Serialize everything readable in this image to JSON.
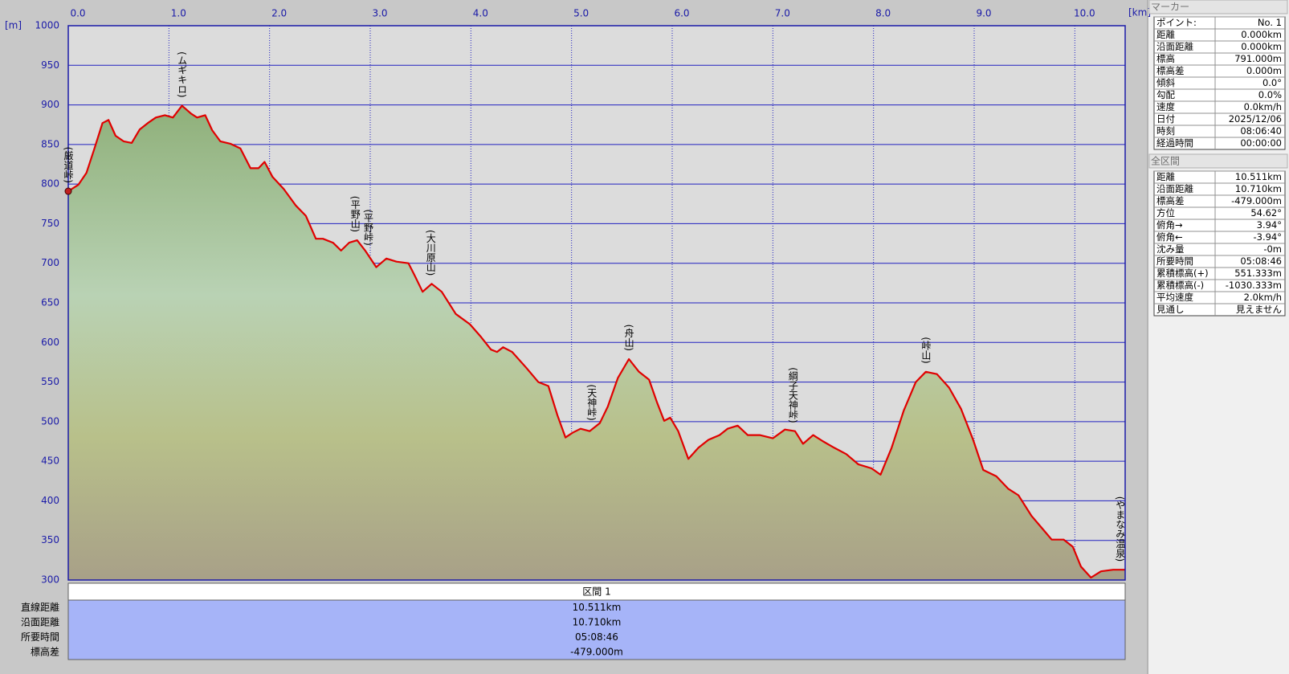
{
  "chart_data": {
    "type": "area",
    "y_label": "[m]",
    "x_label": "[km]",
    "xlim": [
      0,
      10.5
    ],
    "ylim": [
      300,
      1000
    ],
    "xticks": [
      {
        "value": 0,
        "label": "0.0"
      },
      {
        "value": 1,
        "label": "1.0"
      },
      {
        "value": 2,
        "label": "2.0"
      },
      {
        "value": 3,
        "label": "3.0"
      },
      {
        "value": 4,
        "label": "4.0"
      },
      {
        "value": 5,
        "label": "5.0"
      },
      {
        "value": 6,
        "label": "6.0"
      },
      {
        "value": 7,
        "label": "7.0"
      },
      {
        "value": 8,
        "label": "8.0"
      },
      {
        "value": 9,
        "label": "9.0"
      },
      {
        "value": 10,
        "label": "10.0"
      }
    ],
    "yticks": [
      300,
      350,
      400,
      450,
      500,
      550,
      600,
      650,
      700,
      750,
      800,
      850,
      900,
      950,
      1000
    ],
    "grid": true,
    "x": [
      0,
      0.1,
      0.18,
      0.26,
      0.34,
      0.4,
      0.47,
      0.55,
      0.63,
      0.71,
      0.79,
      0.87,
      0.96,
      1.04,
      1.13,
      1.22,
      1.28,
      1.36,
      1.43,
      1.51,
      1.61,
      1.71,
      1.81,
      1.89,
      1.95,
      2.03,
      2.14,
      2.26,
      2.36,
      2.46,
      2.53,
      2.63,
      2.71,
      2.79,
      2.87,
      2.95,
      3.06,
      3.16,
      3.26,
      3.38,
      3.44,
      3.52,
      3.61,
      3.71,
      3.85,
      3.99,
      4.1,
      4.2,
      4.26,
      4.32,
      4.41,
      4.55,
      4.67,
      4.77,
      4.86,
      4.94,
      5.01,
      5.09,
      5.18,
      5.28,
      5.36,
      5.46,
      5.57,
      5.67,
      5.77,
      5.85,
      5.92,
      5.98,
      6.06,
      6.16,
      6.26,
      6.36,
      6.47,
      6.55,
      6.65,
      6.75,
      6.87,
      7.0,
      7.12,
      7.22,
      7.3,
      7.4,
      7.5,
      7.61,
      7.73,
      7.85,
      7.98,
      8.07,
      8.18,
      8.3,
      8.42,
      8.52,
      8.63,
      8.75,
      8.87,
      8.99,
      9.09,
      9.22,
      9.34,
      9.44,
      9.57,
      9.69,
      9.77,
      9.89,
      9.98,
      10.06,
      10.16,
      10.26,
      10.38,
      10.5
    ],
    "series": [
      {
        "color": "#e00000",
        "values": [
          791,
          799,
          814,
          845,
          877,
          881,
          861,
          854,
          852,
          869,
          877,
          884,
          887,
          884,
          899,
          889,
          884,
          887,
          868,
          854,
          851,
          845,
          820,
          820,
          828,
          809,
          794,
          773,
          760,
          731,
          731,
          726,
          716,
          726,
          729,
          716,
          695,
          706,
          702,
          700,
          685,
          664,
          674,
          664,
          636,
          623,
          607,
          591,
          588,
          594,
          588,
          568,
          550,
          545,
          508,
          480,
          486,
          491,
          488,
          498,
          519,
          555,
          579,
          563,
          553,
          524,
          501,
          505,
          488,
          453,
          467,
          477,
          483,
          491,
          495,
          483,
          483,
          479,
          490,
          488,
          472,
          483,
          475,
          467,
          459,
          446,
          441,
          433,
          467,
          514,
          550,
          563,
          560,
          543,
          516,
          477,
          439,
          431,
          415,
          407,
          381,
          363,
          351,
          351,
          342,
          317,
          303,
          311,
          313,
          313
        ]
      }
    ],
    "annotations": [
      {
        "text": "(厳道峠)",
        "x": 0,
        "y": 791
      },
      {
        "text": "(ムギキロ)",
        "x": 1.13,
        "y": 899
      },
      {
        "text": "(平野山)",
        "x": 2.85,
        "y": 729
      },
      {
        "text": "(平野峠)",
        "x": 2.98,
        "y": 712
      },
      {
        "text": "(大川原山)",
        "x": 3.6,
        "y": 674
      },
      {
        "text": "(天神峠)",
        "x": 5.2,
        "y": 491
      },
      {
        "text": "(舟山)",
        "x": 5.57,
        "y": 579
      },
      {
        "text": "(綱子天神峠)",
        "x": 7.2,
        "y": 488
      },
      {
        "text": "(峠山)",
        "x": 8.52,
        "y": 563
      },
      {
        "text": "(やまなみ温泉)",
        "x": 10.45,
        "y": 313
      }
    ]
  },
  "section_table": {
    "header": "区間 1",
    "rows": [
      [
        "直線距離",
        "10.511km"
      ],
      [
        "沿面距離",
        "10.710km"
      ],
      [
        "所要時間",
        "05:08:46"
      ],
      [
        "標高差",
        "-479.000m"
      ]
    ]
  },
  "marker_panel": {
    "title": "マーカー",
    "rows": [
      [
        "ポイント:",
        "No. 1"
      ],
      [
        "距離",
        "0.000km"
      ],
      [
        "沿面距離",
        "0.000km"
      ],
      [
        "標高",
        "791.000m"
      ],
      [
        "標高差",
        "0.000m"
      ],
      [
        "傾斜",
        "0.0°"
      ],
      [
        "勾配",
        "0.0%"
      ],
      [
        "速度",
        "0.0km/h"
      ],
      [
        "日付",
        "2025/12/06"
      ],
      [
        "時刻",
        "08:06:40"
      ],
      [
        "経過時間",
        "00:00:00"
      ]
    ]
  },
  "total_panel": {
    "title": "全区間",
    "rows": [
      [
        "距離",
        "10.511km"
      ],
      [
        "沿面距離",
        "10.710km"
      ],
      [
        "標高差",
        "-479.000m"
      ],
      [
        "方位",
        "54.62°"
      ],
      [
        "俯角→",
        "3.94°"
      ],
      [
        "俯角←",
        "-3.94°"
      ],
      [
        "沈み量",
        "-0m"
      ],
      [
        "所要時間",
        "05:08:46"
      ],
      [
        "累積標高(+)",
        "551.333m"
      ],
      [
        "累積標高(-)",
        "-1030.333m"
      ],
      [
        "平均速度",
        "2.0km/h"
      ],
      [
        "見通し",
        "見えません"
      ]
    ]
  }
}
